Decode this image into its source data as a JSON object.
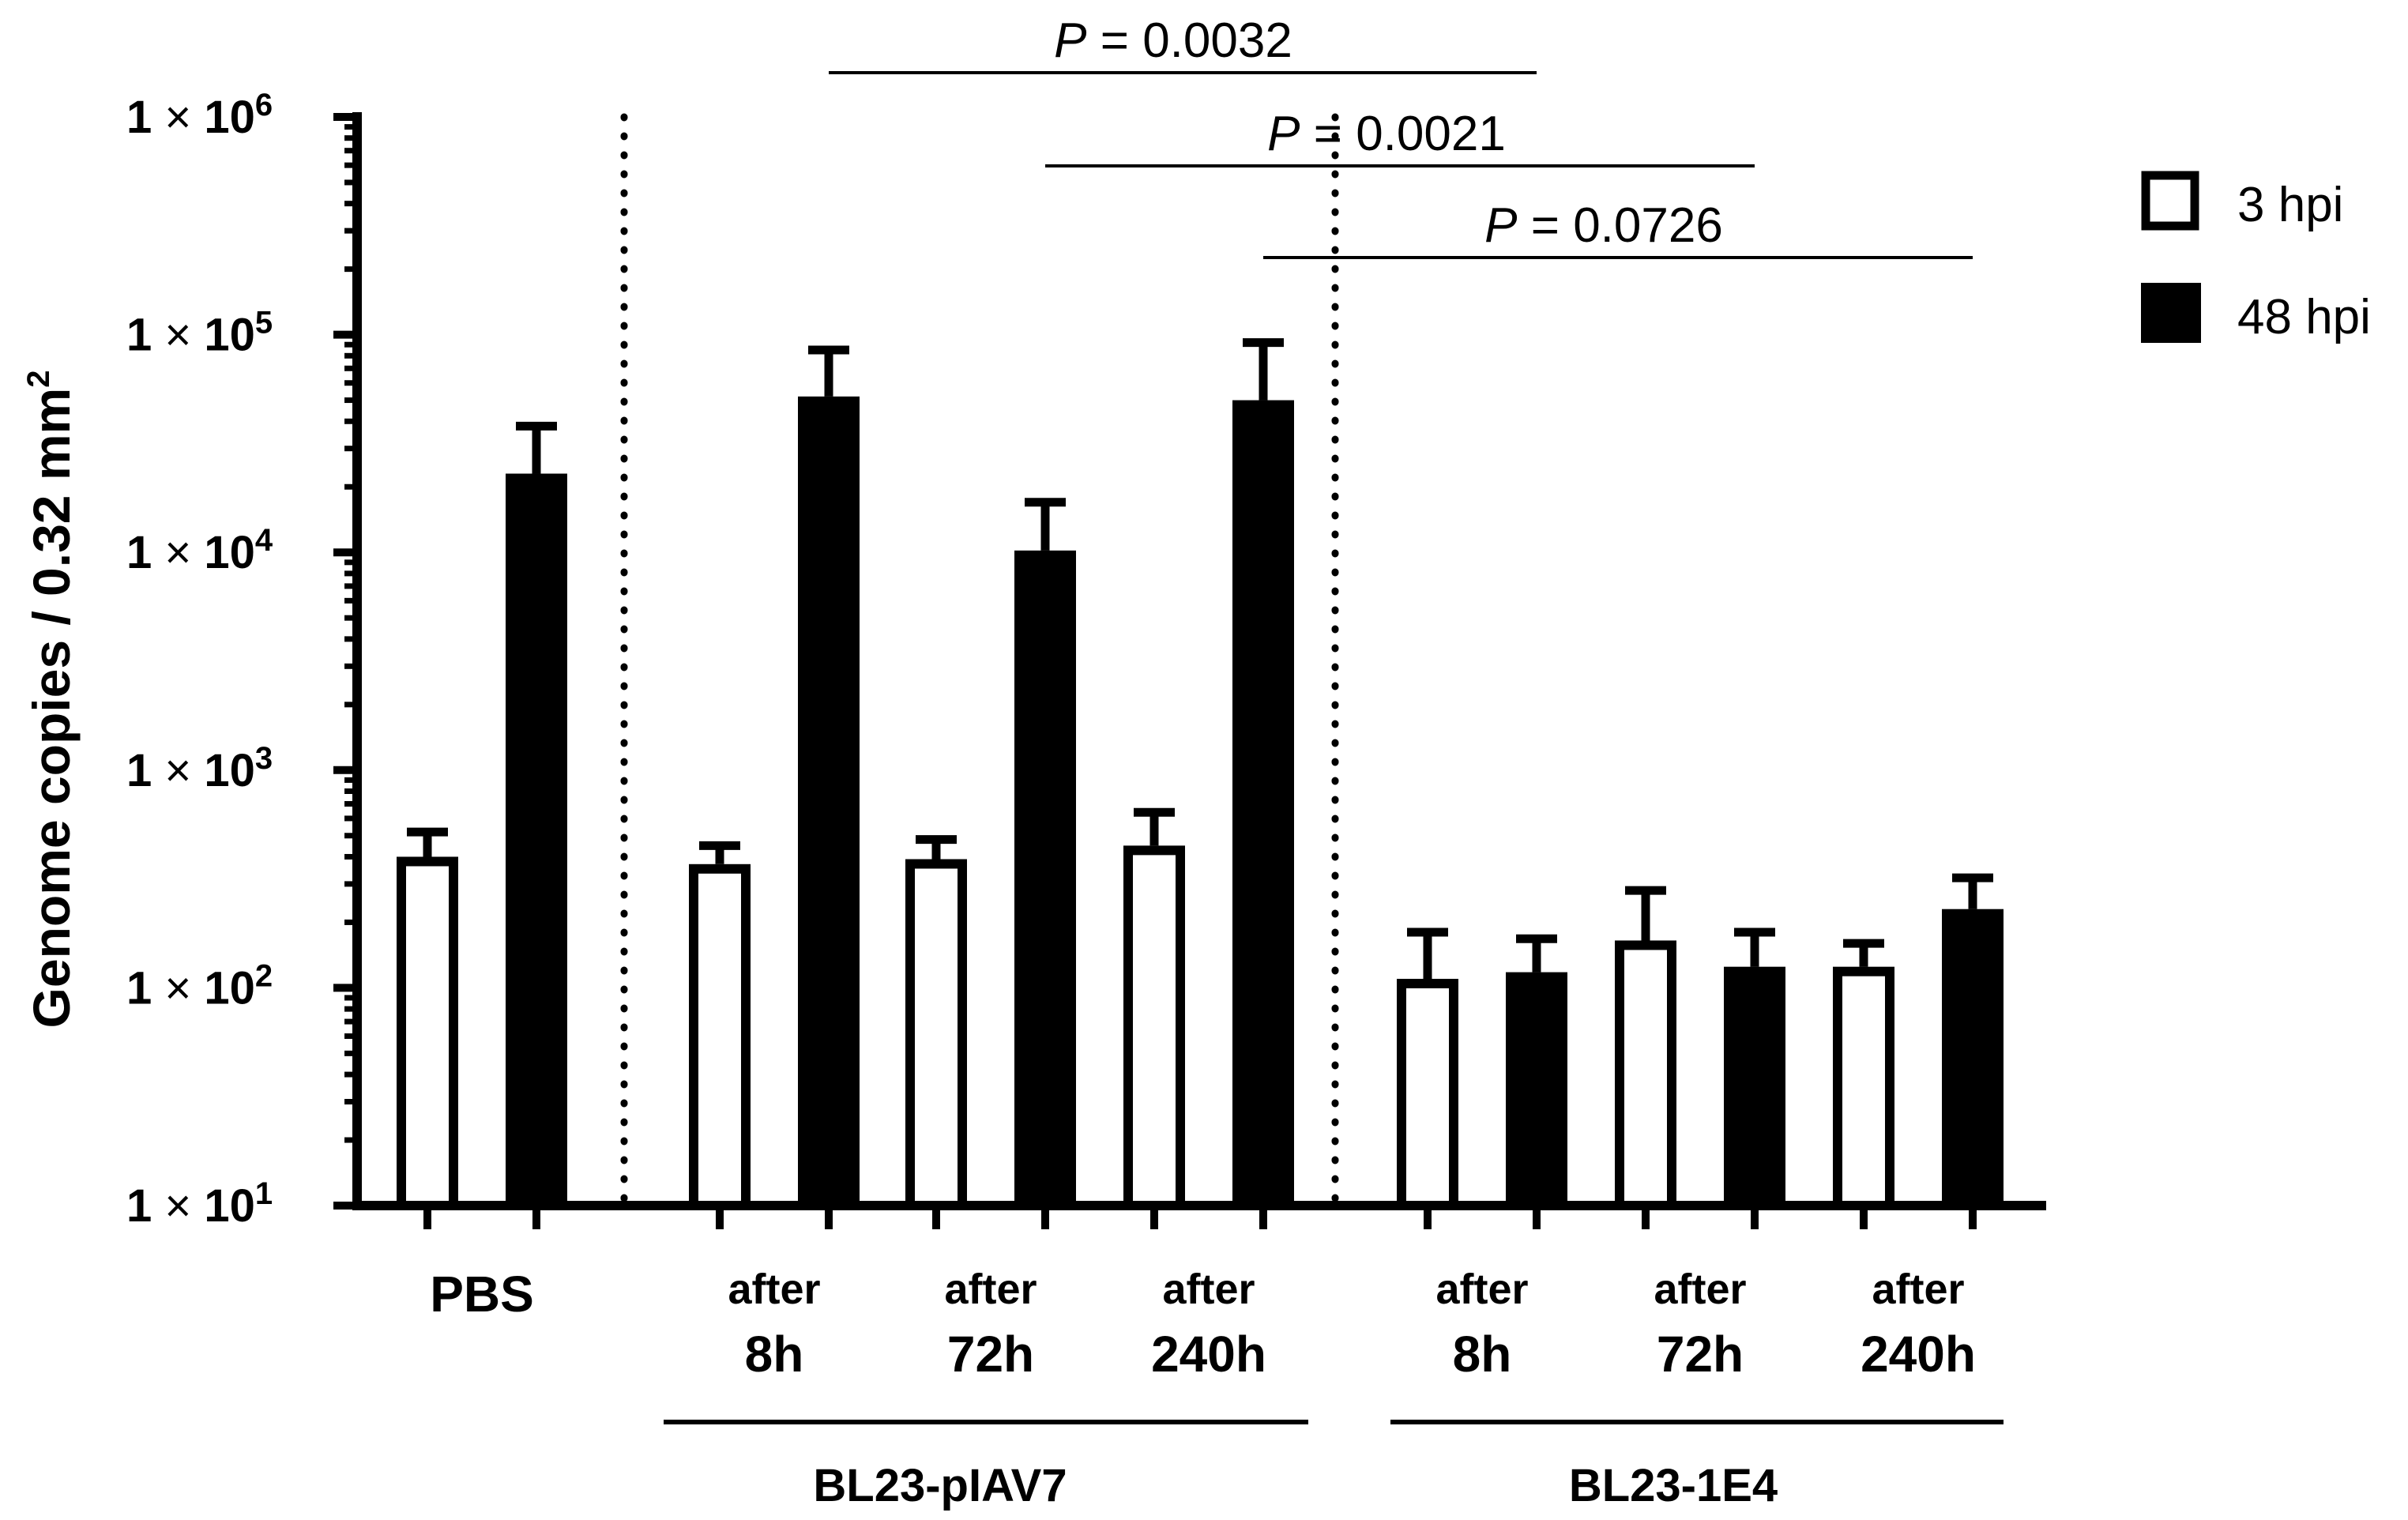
{
  "chart_data": {
    "type": "bar",
    "title": "",
    "xlabel": "",
    "ylabel": "Genome copies / 0.32 mm",
    "ylabel_superscript": "2",
    "yscale": "log",
    "ylim": [
      10,
      1000000
    ],
    "yticks": [
      {
        "value": 10,
        "mantissa": "1",
        "times": "×",
        "base": "10",
        "exp": "1"
      },
      {
        "value": 100,
        "mantissa": "1",
        "times": "×",
        "base": "10",
        "exp": "2"
      },
      {
        "value": 1000,
        "mantissa": "1",
        "times": "×",
        "base": "10",
        "exp": "3"
      },
      {
        "value": 10000,
        "mantissa": "1",
        "times": "×",
        "base": "10",
        "exp": "4"
      },
      {
        "value": 100000,
        "mantissa": "1",
        "times": "×",
        "base": "10",
        "exp": "5"
      },
      {
        "value": 1000000,
        "mantissa": "1",
        "times": "×",
        "base": "10",
        "exp": "6"
      }
    ],
    "categories": [
      {
        "line1": "PBS",
        "line2": ""
      },
      {
        "line1": "after",
        "line2": "8h"
      },
      {
        "line1": "after",
        "line2": "72h"
      },
      {
        "line1": "after",
        "line2": "240h"
      },
      {
        "line1": "after",
        "line2": "8h"
      },
      {
        "line1": "after",
        "line2": "72h"
      },
      {
        "line1": "after",
        "line2": "240h"
      }
    ],
    "series": [
      {
        "name": "3 hpi",
        "color": "#ffffff",
        "edge": "#000000",
        "values": [
          400,
          370,
          390,
          450,
          110,
          165,
          125
        ],
        "errors_upper": [
          520,
          450,
          480,
          640,
          180,
          280,
          160
        ]
      },
      {
        "name": "48 hpi",
        "color": "#000000",
        "edge": "#000000",
        "values": [
          23000,
          52000,
          10200,
          50000,
          118,
          125,
          230
        ],
        "errors_upper": [
          38000,
          85000,
          17000,
          92000,
          168,
          180,
          320
        ]
      }
    ],
    "groups": [
      {
        "label": "BL23-pIAV7",
        "categories": [
          1,
          2,
          3
        ]
      },
      {
        "label": "BL23-1E4",
        "categories": [
          4,
          5,
          6
        ]
      }
    ],
    "annotations": [
      {
        "p_label": "P",
        "text": " = 0.0032",
        "from": {
          "category": 1,
          "series": 1
        },
        "to": {
          "category": 4,
          "series": 1
        }
      },
      {
        "p_label": "P",
        "text": " = 0.0021",
        "from": {
          "category": 2,
          "series": 1
        },
        "to": {
          "category": 5,
          "series": 1
        }
      },
      {
        "p_label": "P",
        "text": " = 0.0726",
        "from": {
          "category": 3,
          "series": 1
        },
        "to": {
          "category": 6,
          "series": 1
        }
      }
    ],
    "legend_position": "top-right",
    "grid": false
  }
}
